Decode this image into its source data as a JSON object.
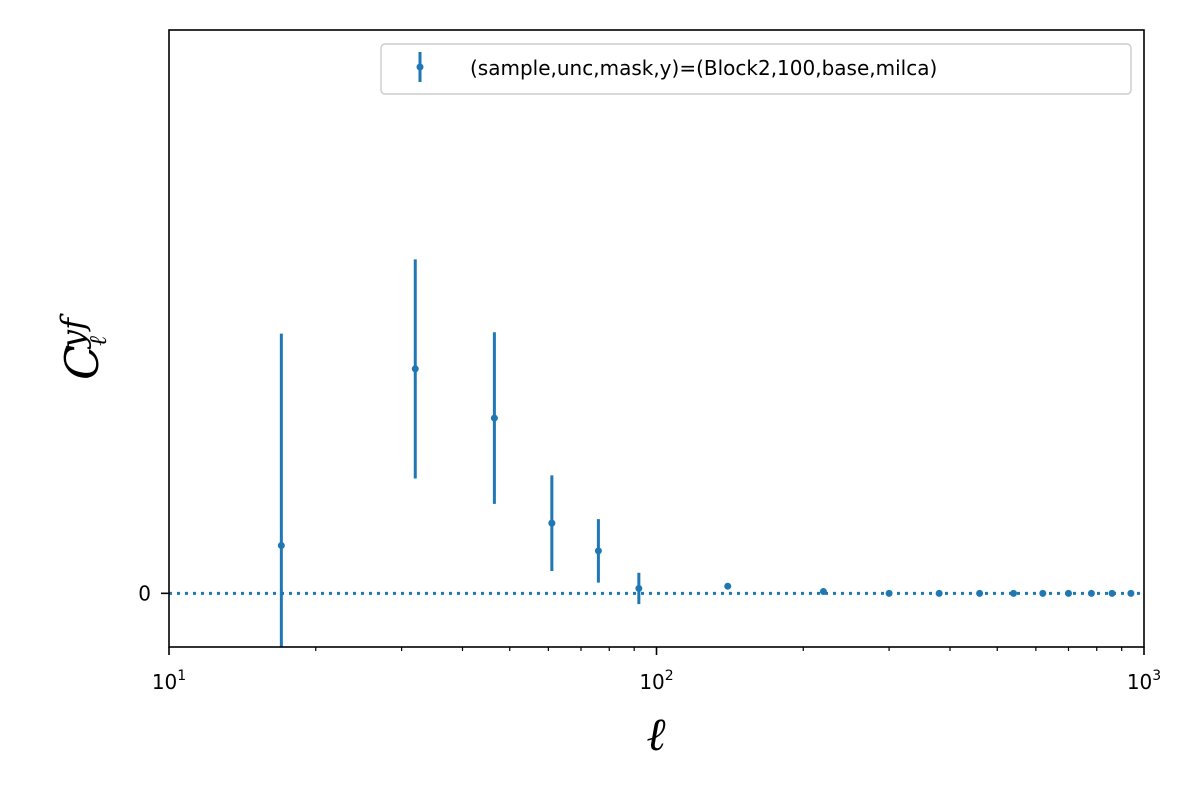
{
  "chart_data": {
    "type": "scatter",
    "xscale": "log",
    "xlim": [
      10,
      1000
    ],
    "ylim": [
      -0.12,
      1.26
    ],
    "grid": false,
    "legend_position": "top-right",
    "xlabel": "ℓ",
    "ylabel": {
      "base": "C",
      "superscript": "yf",
      "subscript": "ℓ"
    },
    "x_ticks": [
      {
        "value": 10,
        "base": "10",
        "exp": "1"
      },
      {
        "value": 100,
        "base": "10",
        "exp": "2"
      },
      {
        "value": 1000,
        "base": "10",
        "exp": "3"
      }
    ],
    "y_ticks": [
      {
        "value": 0,
        "label": "0"
      }
    ],
    "reference_line": {
      "y": 0,
      "style": "dotted"
    },
    "series": [
      {
        "name": "(sample,unc,mask,y)=(Block2,100,base,milca)",
        "color": "#1f77b4",
        "x": [
          17,
          32,
          46.5,
          61,
          76,
          92,
          140,
          220,
          300,
          380,
          460,
          540,
          620,
          700,
          780,
          860,
          940
        ],
        "y": [
          0.107,
          0.502,
          0.392,
          0.157,
          0.095,
          0.011,
          0.016,
          0.004,
          0.0,
          0.0,
          0.0,
          0.0,
          0.0,
          0.0,
          0.0,
          0.0,
          0.0
        ],
        "yerr": [
          0.474,
          0.245,
          0.192,
          0.107,
          0.071,
          0.035,
          0.002,
          0.001,
          0.0,
          0.0,
          0.0,
          0.0,
          0.0,
          0.0,
          0.0,
          0.0,
          0.0
        ]
      }
    ]
  }
}
